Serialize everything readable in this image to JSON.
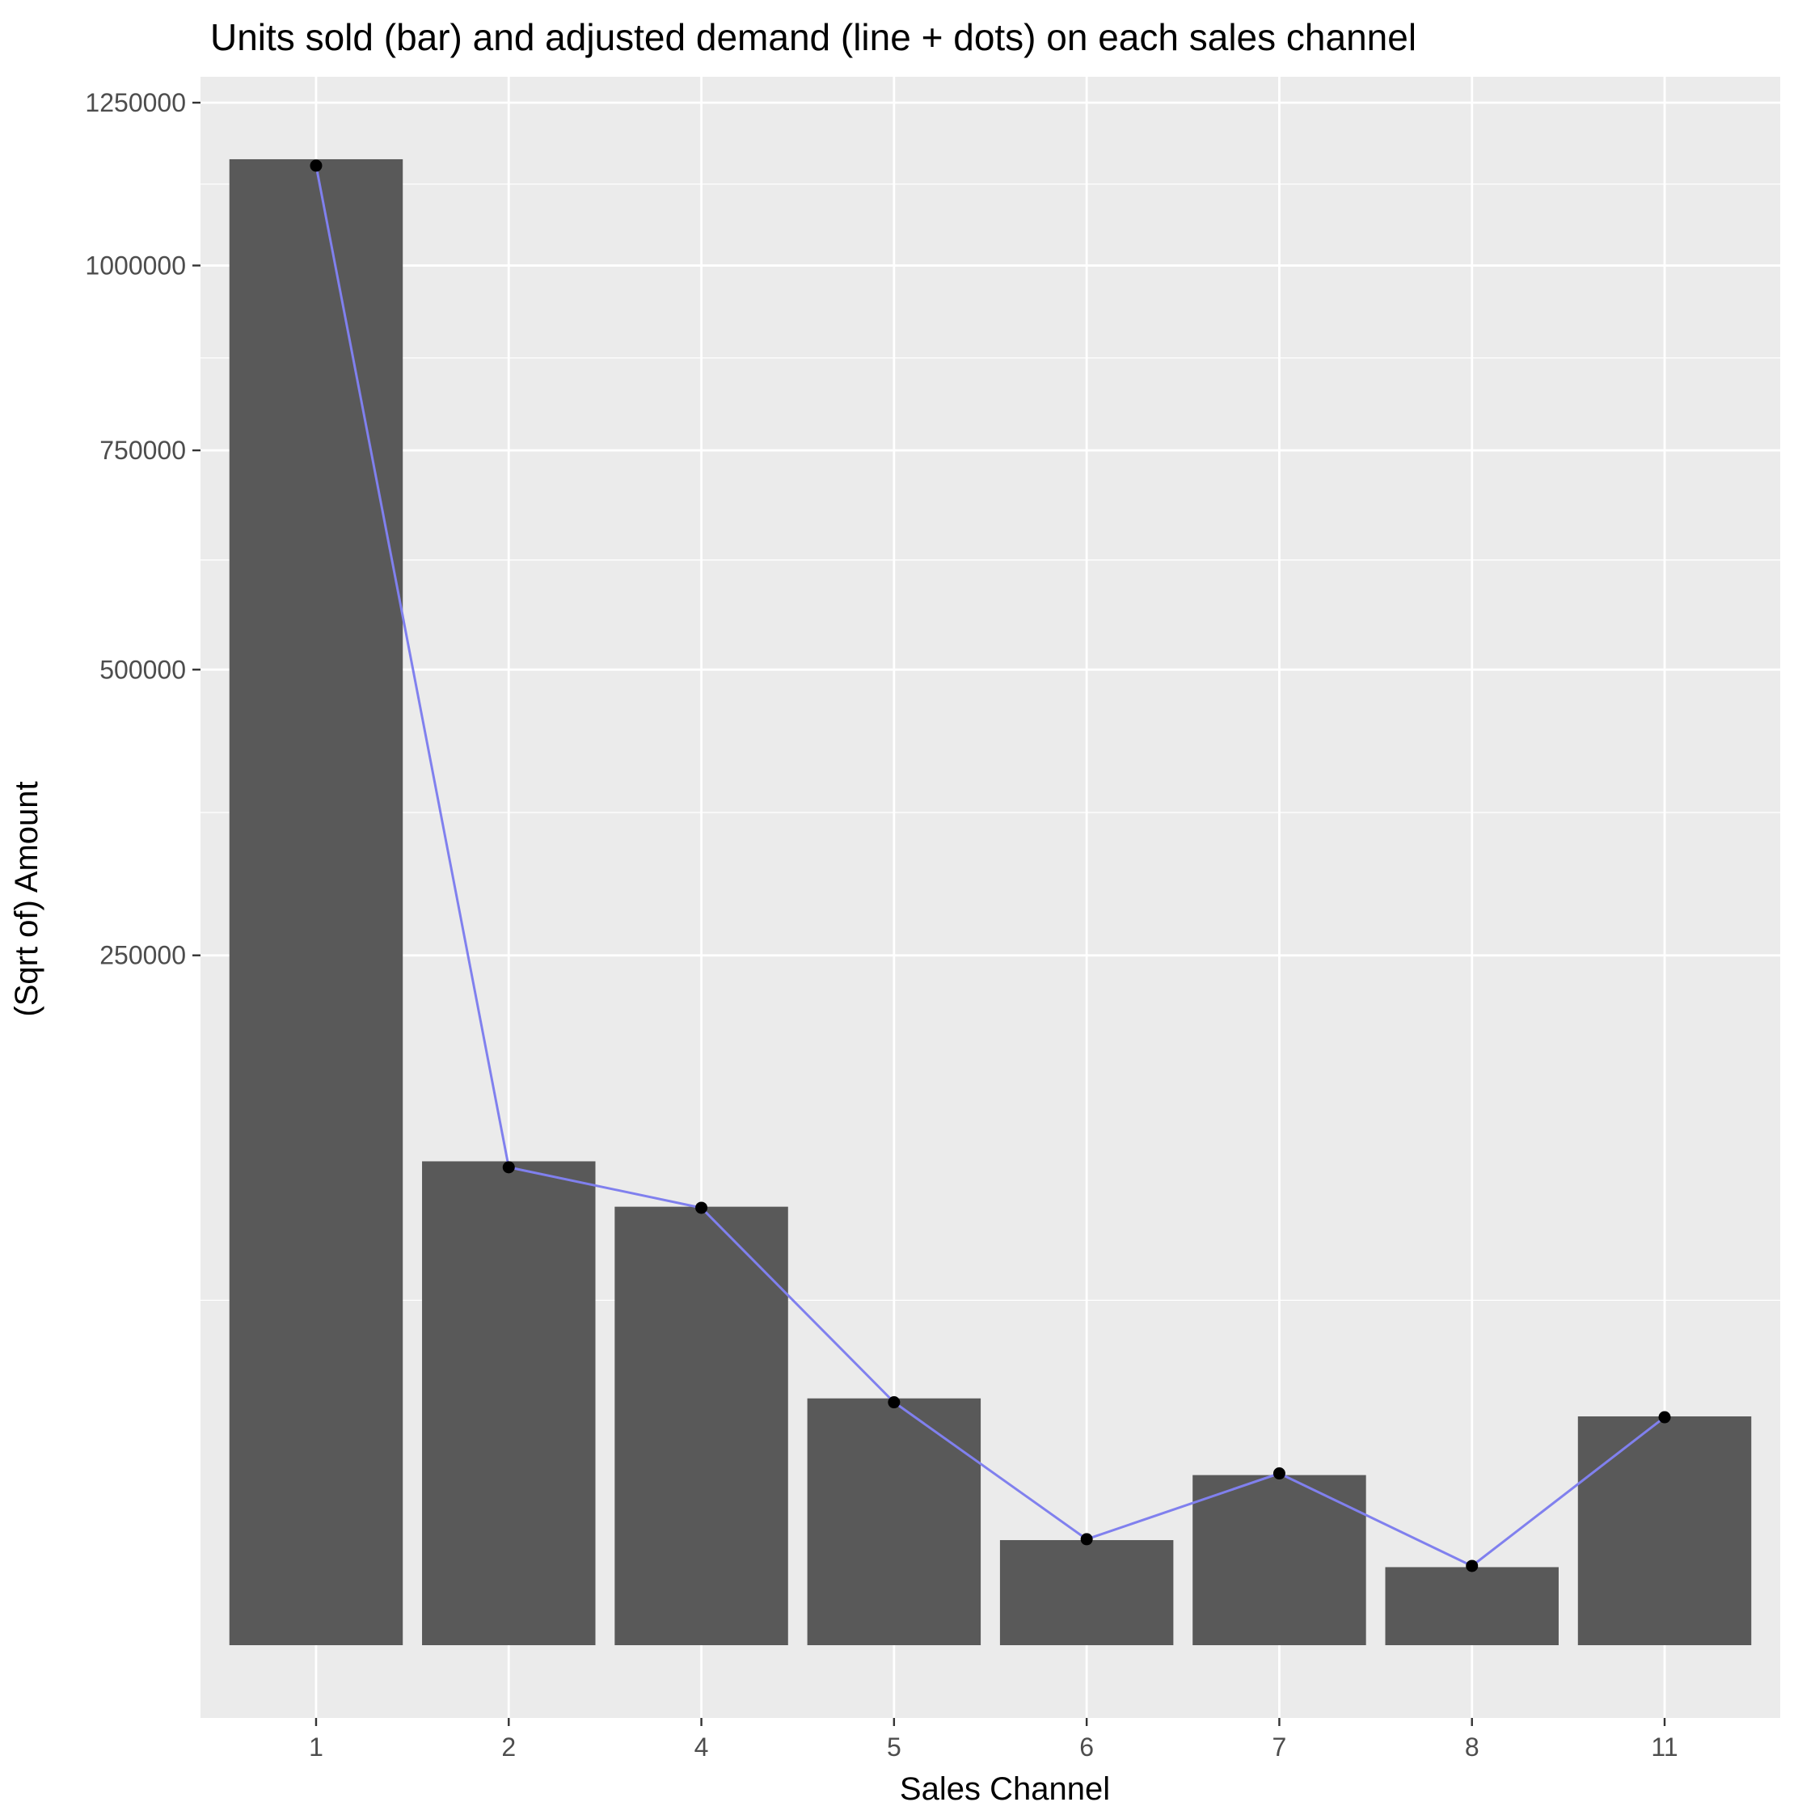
{
  "chart_data": {
    "type": "bar",
    "title": "Units sold (bar) and adjusted demand (line + dots) on each sales channel",
    "xlabel": "Sales Channel",
    "ylabel": "(Sqrt of) Amount",
    "y_scale": "sqrt",
    "ylim": [
      0,
      1300000
    ],
    "yticks": [
      250000,
      500000,
      750000,
      1000000,
      1250000
    ],
    "ytick_labels": [
      "250000",
      "500000",
      "750000",
      "1000000",
      "1250000"
    ],
    "categories": [
      "1",
      "2",
      "4",
      "5",
      "6",
      "7",
      "8",
      "11"
    ],
    "series": [
      {
        "kind": "bar",
        "values": [
          1160000,
          123000,
          101000,
          32000,
          5800,
          15200,
          3200,
          27500
        ]
      },
      {
        "kind": "line+points",
        "values": [
          1150000,
          120000,
          100500,
          31000,
          5900,
          15500,
          3300,
          27300
        ]
      }
    ],
    "grid": true,
    "legend": "none",
    "colors": {
      "panel": "#ebebeb",
      "grid": "#ffffff",
      "bar": "#595959",
      "line": "#8080ee",
      "point": "#000000"
    }
  }
}
